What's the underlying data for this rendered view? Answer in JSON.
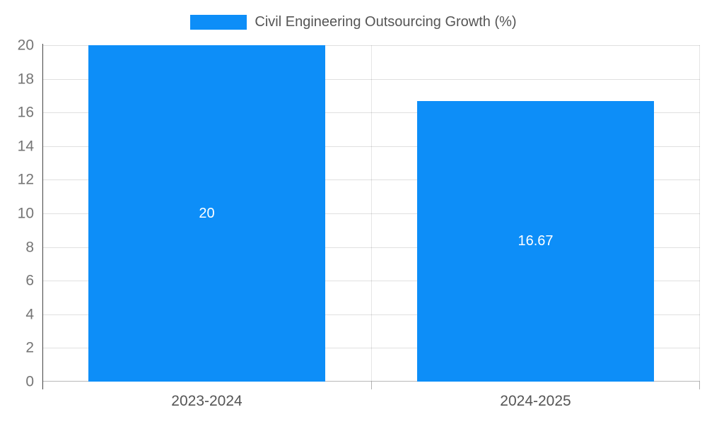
{
  "legend": {
    "label": "Civil Engineering Outsourcing Growth (%)"
  },
  "colors": {
    "bar": "#0d8ef8",
    "grid": "#e0e0e0",
    "axis": "#444444",
    "y_tick_text": "#757575",
    "x_tick_text": "#555555",
    "value_label_text": "#ffffff",
    "background": "#ffffff"
  },
  "chart_data": {
    "type": "bar",
    "title": "Civil Engineering Outsourcing Growth (%)",
    "categories": [
      "2023-2024",
      "2024-2025"
    ],
    "values": [
      20,
      16.67
    ],
    "value_labels": [
      "20",
      "16.67"
    ],
    "xlabel": "",
    "ylabel": "",
    "ylim": [
      0,
      20
    ],
    "ytick_step": 2,
    "ytick_labels": [
      "0",
      "2",
      "4",
      "6",
      "8",
      "10",
      "12",
      "14",
      "16",
      "18",
      "20"
    ],
    "grid": true,
    "legend_position": "top",
    "value_labels_inside_bars": true
  }
}
